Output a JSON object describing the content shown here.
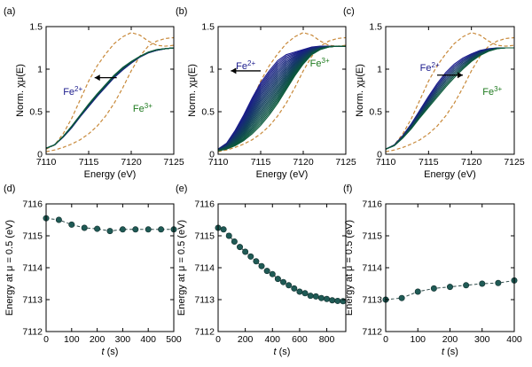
{
  "chart_data": [
    {
      "panel": "(a)",
      "type": "line",
      "xlabel": "Energy (eV)",
      "ylabel": "Norm. χμ(E)",
      "xlim": [
        7110,
        7125
      ],
      "ylim": [
        0,
        1.5
      ],
      "xticks": [
        7110,
        7115,
        7120,
        7125
      ],
      "yticks": [
        0,
        0.5,
        1,
        1.5
      ],
      "ytick_labels": [
        "0",
        "0.5",
        "1",
        "1.5"
      ],
      "colors": {
        "reference": "#c8893a",
        "start": "#1a1a8c",
        "end": "#0a5a3a",
        "arrow": "#000000"
      },
      "annotations": {
        "fe2_base": "Fe",
        "fe2_sup": "2+",
        "fe2_color": "#1a1a8c",
        "fe3_base": "Fe",
        "fe3_sup": "3+",
        "fe3_color": "#1e7a1e",
        "arrow_direction": "left",
        "arrow_y": 0.9,
        "arrow_x_from": 7118.3,
        "arrow_x_to": 7115.7
      },
      "reference_curves": [
        {
          "x": [
            7110,
            7111,
            7112,
            7113,
            7114,
            7115,
            7116,
            7117,
            7118,
            7119,
            7120,
            7121,
            7122,
            7123,
            7124,
            7125
          ],
          "y": [
            0.06,
            0.11,
            0.24,
            0.42,
            0.64,
            0.86,
            1.04,
            1.18,
            1.3,
            1.38,
            1.43,
            1.4,
            1.33,
            1.28,
            1.27,
            1.28
          ]
        },
        {
          "x": [
            7110,
            7111,
            7112,
            7113,
            7114,
            7115,
            7116,
            7117,
            7118,
            7119,
            7120,
            7121,
            7122,
            7123,
            7124,
            7125
          ],
          "y": [
            0.03,
            0.05,
            0.08,
            0.12,
            0.17,
            0.24,
            0.33,
            0.45,
            0.6,
            0.78,
            0.98,
            1.15,
            1.27,
            1.33,
            1.36,
            1.37
          ]
        }
      ],
      "series_x": [
        7110,
        7111,
        7112,
        7113,
        7114,
        7115,
        7116,
        7117,
        7118,
        7119,
        7120,
        7121,
        7122,
        7123,
        7124,
        7125
      ],
      "series_start": [
        0.07,
        0.11,
        0.2,
        0.31,
        0.44,
        0.56,
        0.68,
        0.79,
        0.9,
        0.99,
        1.07,
        1.14,
        1.19,
        1.22,
        1.24,
        1.25
      ],
      "series_end": [
        0.07,
        0.11,
        0.21,
        0.33,
        0.46,
        0.59,
        0.71,
        0.82,
        0.93,
        1.02,
        1.09,
        1.15,
        1.2,
        1.23,
        1.24,
        1.25
      ],
      "series_count": 11
    },
    {
      "panel": "(b)",
      "type": "line",
      "xlabel": "Energy (eV)",
      "ylabel": "Norm. χμ(E)",
      "xlim": [
        7110,
        7125
      ],
      "ylim": [
        0,
        1.5
      ],
      "xticks": [
        7110,
        7115,
        7120,
        7125
      ],
      "yticks": [
        0,
        0.5,
        1,
        1.5
      ],
      "ytick_labels": [
        "0",
        "0.5",
        "1",
        "1.5"
      ],
      "colors": {
        "reference": "#c8893a",
        "start": "#1a1a8c",
        "end": "#0a5a3a",
        "arrow": "#000000"
      },
      "annotations": {
        "fe2_base": "Fe",
        "fe2_sup": "2+",
        "fe2_color": "#1a1a8c",
        "fe3_base": "Fe",
        "fe3_sup": "3+",
        "fe3_color": "#1e7a1e",
        "arrow_direction": "left",
        "arrow_y": 0.98,
        "arrow_x_from": 7115.0,
        "arrow_x_to": 7111.5
      },
      "reference_curves": [
        {
          "x": [
            7110,
            7111,
            7112,
            7113,
            7114,
            7115,
            7116,
            7117,
            7118,
            7119,
            7120,
            7121,
            7122,
            7123,
            7124,
            7125
          ],
          "y": [
            0.06,
            0.11,
            0.24,
            0.42,
            0.64,
            0.86,
            1.04,
            1.18,
            1.3,
            1.38,
            1.43,
            1.4,
            1.33,
            1.28,
            1.27,
            1.28
          ]
        },
        {
          "x": [
            7110,
            7111,
            7112,
            7113,
            7114,
            7115,
            7116,
            7117,
            7118,
            7119,
            7120,
            7121,
            7122,
            7123,
            7124,
            7125
          ],
          "y": [
            0.03,
            0.05,
            0.08,
            0.12,
            0.17,
            0.24,
            0.33,
            0.45,
            0.6,
            0.78,
            0.98,
            1.15,
            1.27,
            1.33,
            1.36,
            1.37
          ]
        }
      ],
      "series_x": [
        7110,
        7111,
        7112,
        7113,
        7114,
        7115,
        7116,
        7117,
        7118,
        7119,
        7120,
        7121,
        7122,
        7123,
        7124,
        7125
      ],
      "series_start": [
        0.06,
        0.13,
        0.28,
        0.46,
        0.66,
        0.84,
        0.98,
        1.1,
        1.17,
        1.2,
        1.23,
        1.26,
        1.27,
        1.27,
        1.27,
        1.27
      ],
      "series_end": [
        0.04,
        0.06,
        0.1,
        0.16,
        0.24,
        0.34,
        0.46,
        0.6,
        0.76,
        0.92,
        1.06,
        1.17,
        1.23,
        1.26,
        1.27,
        1.27
      ],
      "series_count": 24
    },
    {
      "panel": "(c)",
      "type": "line",
      "xlabel": "Energy (eV)",
      "ylabel": "Norm. χμ(E)",
      "xlim": [
        7110,
        7125
      ],
      "ylim": [
        0,
        1.5
      ],
      "xticks": [
        7110,
        7115,
        7120,
        7125
      ],
      "yticks": [
        0,
        0.5,
        1,
        1.5
      ],
      "ytick_labels": [
        "0",
        "0.5",
        "1",
        "1.5"
      ],
      "colors": {
        "reference": "#c8893a",
        "start": "#1a1a8c",
        "end": "#0a5a3a",
        "arrow": "#000000"
      },
      "annotations": {
        "fe2_base": "Fe",
        "fe2_sup": "2+",
        "fe2_color": "#1a1a8c",
        "fe3_base": "Fe",
        "fe3_sup": "3+",
        "fe3_color": "#1e7a1e",
        "arrow_direction": "right",
        "arrow_y": 0.93,
        "arrow_x_from": 7116.0,
        "arrow_x_to": 7119.0
      },
      "reference_curves": [
        {
          "x": [
            7110,
            7111,
            7112,
            7113,
            7114,
            7115,
            7116,
            7117,
            7118,
            7119,
            7120,
            7121,
            7122,
            7123,
            7124,
            7125
          ],
          "y": [
            0.06,
            0.11,
            0.24,
            0.42,
            0.64,
            0.86,
            1.04,
            1.18,
            1.3,
            1.38,
            1.43,
            1.4,
            1.33,
            1.28,
            1.27,
            1.28
          ]
        },
        {
          "x": [
            7110,
            7111,
            7112,
            7113,
            7114,
            7115,
            7116,
            7117,
            7118,
            7119,
            7120,
            7121,
            7122,
            7123,
            7124,
            7125
          ],
          "y": [
            0.03,
            0.05,
            0.08,
            0.12,
            0.17,
            0.24,
            0.33,
            0.45,
            0.6,
            0.78,
            0.98,
            1.15,
            1.27,
            1.33,
            1.36,
            1.37
          ]
        }
      ],
      "series_x": [
        7110,
        7111,
        7112,
        7113,
        7114,
        7115,
        7116,
        7117,
        7118,
        7119,
        7120,
        7121,
        7122,
        7123,
        7124,
        7125
      ],
      "series_start": [
        0.06,
        0.11,
        0.22,
        0.36,
        0.52,
        0.68,
        0.83,
        0.96,
        1.06,
        1.13,
        1.18,
        1.22,
        1.24,
        1.25,
        1.25,
        1.25
      ],
      "series_end": [
        0.06,
        0.1,
        0.19,
        0.3,
        0.43,
        0.55,
        0.67,
        0.79,
        0.9,
        1.0,
        1.09,
        1.16,
        1.21,
        1.24,
        1.25,
        1.25
      ],
      "series_count": 9
    },
    {
      "panel": "(d)",
      "type": "scatter",
      "xlabel": "t (s)",
      "xlabel_italic": "t",
      "xlabel_rest": " (s)",
      "ylabel": "Energy at μ = 0.5 (eV)",
      "xlim": [
        0,
        500
      ],
      "ylim": [
        7112,
        7116
      ],
      "xticks": [
        0,
        100,
        200,
        300,
        400,
        500
      ],
      "yticks": [
        7112,
        7113,
        7114,
        7115,
        7116
      ],
      "colors": {
        "marker": "#1f5a55",
        "line": "#2e4a49"
      },
      "x": [
        0,
        50,
        100,
        150,
        200,
        250,
        300,
        350,
        400,
        450,
        500
      ],
      "y": [
        7115.55,
        7115.5,
        7115.35,
        7115.25,
        7115.22,
        7115.15,
        7115.2,
        7115.2,
        7115.2,
        7115.2,
        7115.2
      ]
    },
    {
      "panel": "(e)",
      "type": "scatter",
      "xlabel": "t (s)",
      "xlabel_italic": "t",
      "xlabel_rest": " (s)",
      "ylabel": "Energy at μ = 0.5 (eV)",
      "xlim": [
        0,
        940
      ],
      "ylim": [
        7112,
        7116
      ],
      "xticks": [
        0,
        200,
        400,
        600,
        800
      ],
      "yticks": [
        7112,
        7113,
        7114,
        7115,
        7116
      ],
      "colors": {
        "marker": "#1f5a55",
        "line": "#2e4a49"
      },
      "x": [
        0,
        40,
        80,
        120,
        160,
        200,
        240,
        280,
        320,
        360,
        400,
        440,
        480,
        520,
        560,
        600,
        640,
        680,
        720,
        760,
        800,
        840,
        880,
        920
      ],
      "y": [
        7115.25,
        7115.2,
        7115.0,
        7114.82,
        7114.65,
        7114.5,
        7114.35,
        7114.2,
        7114.05,
        7113.9,
        7113.8,
        7113.65,
        7113.55,
        7113.45,
        7113.35,
        7113.25,
        7113.2,
        7113.12,
        7113.1,
        7113.05,
        7113.02,
        7112.98,
        7112.96,
        7112.95
      ]
    },
    {
      "panel": "(f)",
      "type": "scatter",
      "xlabel": "t (s)",
      "xlabel_italic": "t",
      "xlabel_rest": " (s)",
      "ylabel": "Energy at μ = 0.5 (eV)",
      "xlim": [
        0,
        400
      ],
      "ylim": [
        7112,
        7116
      ],
      "xticks": [
        0,
        100,
        200,
        300,
        400
      ],
      "yticks": [
        7112,
        7113,
        7114,
        7115,
        7116
      ],
      "colors": {
        "marker": "#1f5a55",
        "line": "#2e4a49"
      },
      "x": [
        0,
        50,
        100,
        150,
        200,
        250,
        300,
        350,
        400
      ],
      "y": [
        7113.0,
        7113.05,
        7113.25,
        7113.35,
        7113.4,
        7113.45,
        7113.5,
        7113.52,
        7113.6
      ]
    }
  ]
}
